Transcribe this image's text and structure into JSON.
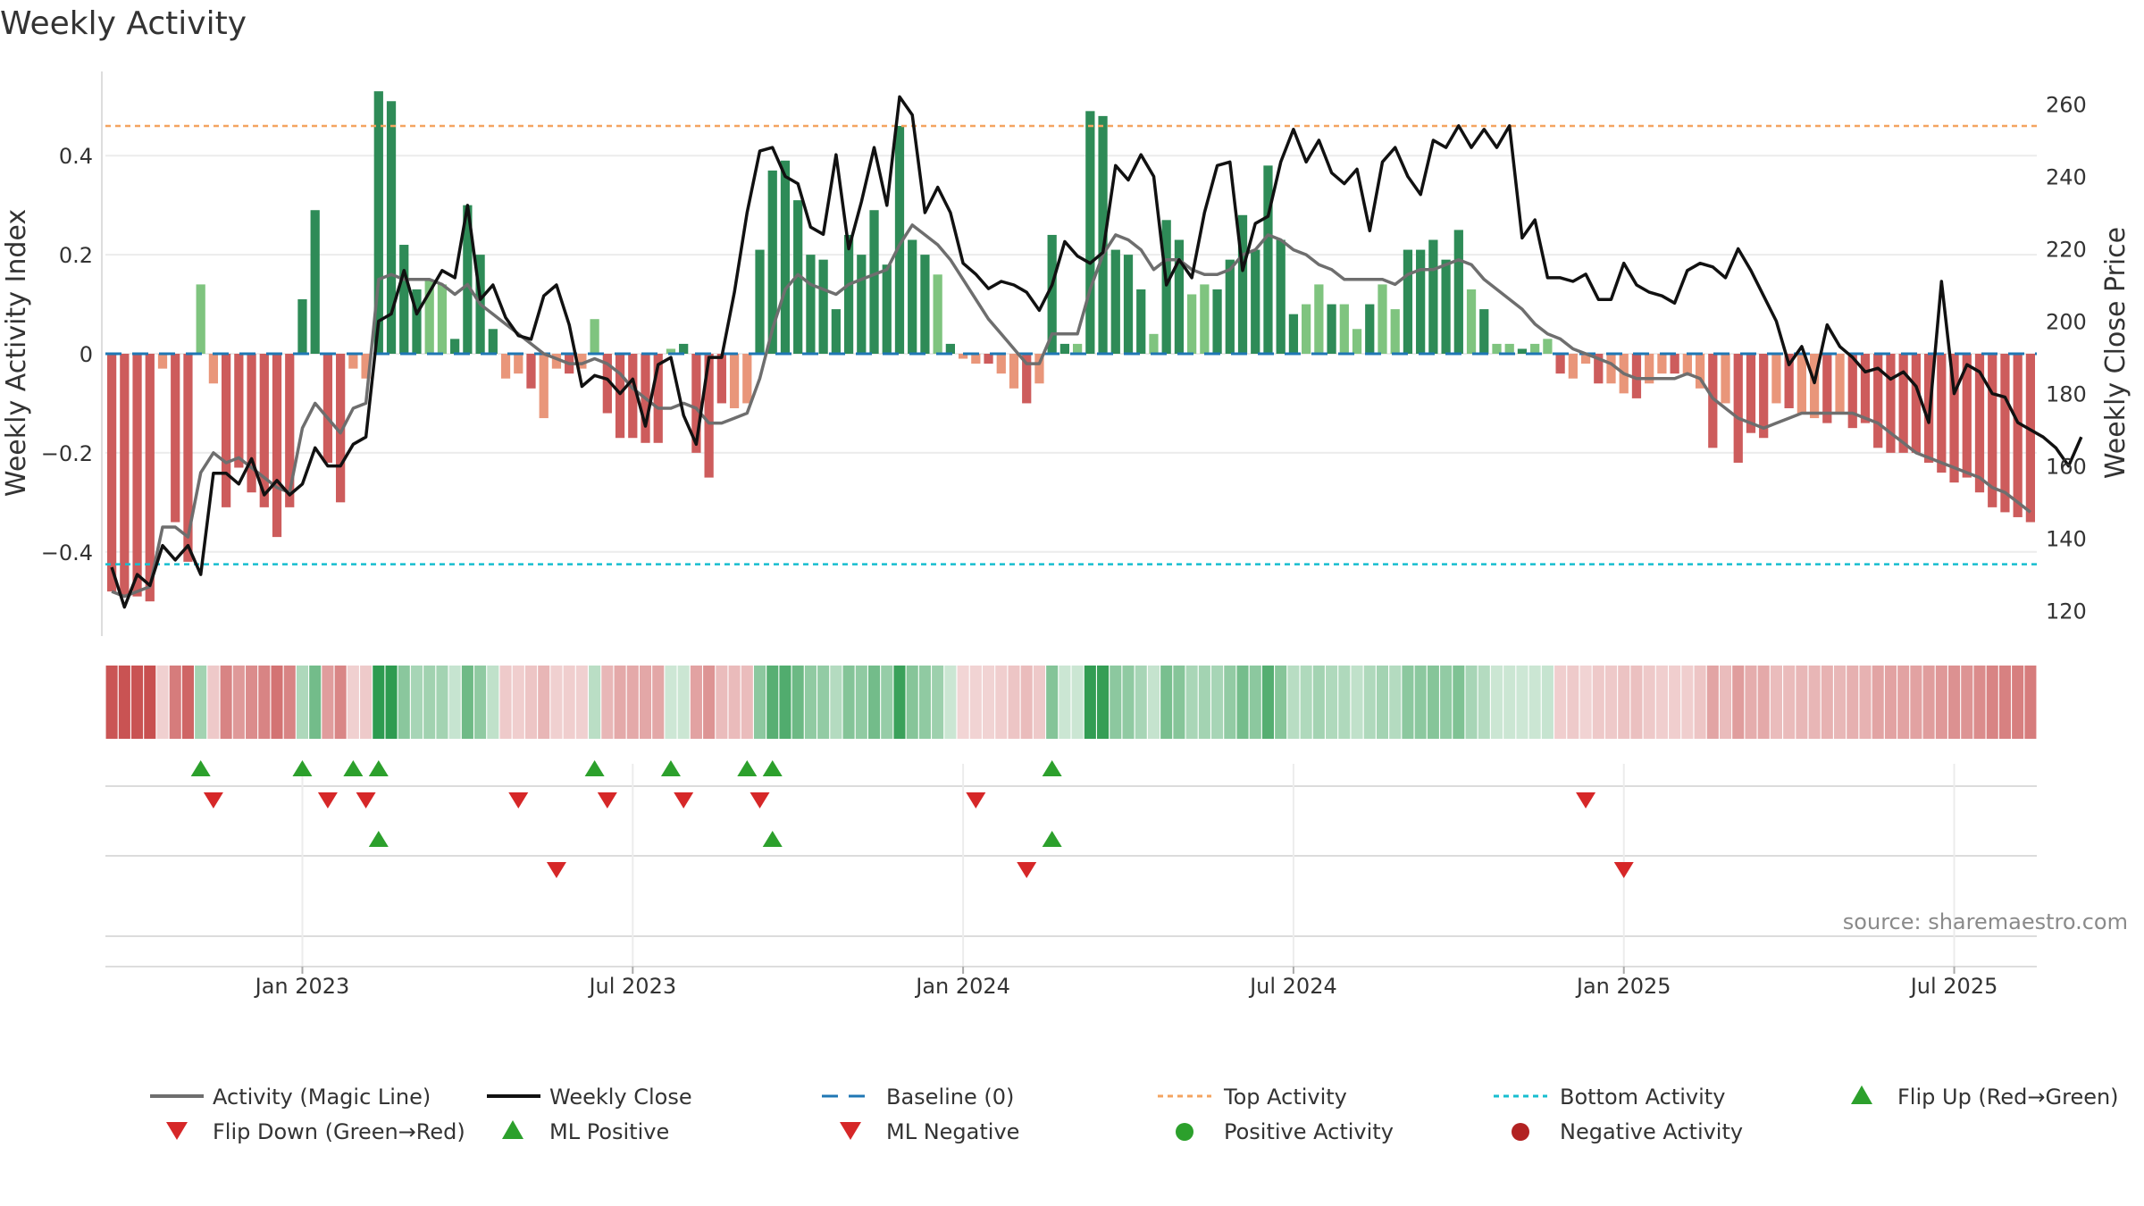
{
  "chart_data": {
    "type": "bar",
    "title": "Weekly Activity",
    "ylabel": "Weekly Activity Index",
    "y2label": "Weekly Close Price",
    "ylim": [
      -0.57,
      0.57
    ],
    "y2lim": [
      113,
      269
    ],
    "yticks": [
      {
        "v": 0.4,
        "label": "0.4"
      },
      {
        "v": 0.2,
        "label": "0.2"
      },
      {
        "v": 0,
        "label": "0"
      },
      {
        "v": -0.2,
        "label": "−0.2"
      },
      {
        "v": -0.4,
        "label": "−0.4"
      }
    ],
    "y2ticks": [
      "120",
      "140",
      "160",
      "180",
      "200",
      "220",
      "240",
      "260"
    ],
    "xtick_labels": [
      "Jan 2023",
      "Jul 2023",
      "Jan 2024",
      "Jul 2024",
      "Jan 2025",
      "Jul 2025"
    ],
    "xtick_index": [
      15,
      41,
      67,
      93,
      119,
      145
    ],
    "top_activity": 0.46,
    "bottom_activity": -0.425,
    "source": "source: sharemaestro.com",
    "activity": [
      -0.48,
      -0.49,
      -0.49,
      -0.5,
      -0.03,
      -0.34,
      -0.42,
      0.14,
      -0.06,
      -0.31,
      -0.23,
      -0.28,
      -0.31,
      -0.37,
      -0.31,
      0.11,
      0.29,
      -0.22,
      -0.3,
      -0.03,
      -0.05,
      0.53,
      0.51,
      0.22,
      0.13,
      0.15,
      0.14,
      0.03,
      0.3,
      0.2,
      0.05,
      -0.05,
      -0.04,
      -0.07,
      -0.13,
      -0.03,
      -0.04,
      -0.03,
      0.07,
      -0.12,
      -0.17,
      -0.17,
      -0.18,
      -0.18,
      0.01,
      0.02,
      -0.2,
      -0.25,
      -0.1,
      -0.11,
      -0.1,
      0.21,
      0.37,
      0.39,
      0.31,
      0.2,
      0.19,
      0.09,
      0.24,
      0.2,
      0.29,
      0.18,
      0.46,
      0.23,
      0.2,
      0.16,
      0.02,
      -0.01,
      -0.02,
      -0.02,
      -0.04,
      -0.07,
      -0.1,
      -0.06,
      0.24,
      0.02,
      0.02,
      0.49,
      0.48,
      0.21,
      0.2,
      0.13,
      0.04,
      0.27,
      0.23,
      0.12,
      0.14,
      0.13,
      0.19,
      0.28,
      0.21,
      0.38,
      0.23,
      0.08,
      0.1,
      0.14,
      0.1,
      0.1,
      0.05,
      0.1,
      0.14,
      0.09,
      0.21,
      0.21,
      0.23,
      0.19,
      0.25,
      0.13,
      0.09,
      0.02,
      0.02,
      0.01,
      0.02,
      0.03,
      -0.04,
      -0.05,
      -0.02,
      -0.06,
      -0.06,
      -0.08,
      -0.09,
      -0.06,
      -0.04,
      -0.04,
      -0.04,
      -0.07,
      -0.19,
      -0.1,
      -0.22,
      -0.16,
      -0.17,
      -0.1,
      -0.11,
      -0.12,
      -0.13,
      -0.14,
      -0.12,
      -0.15,
      -0.14,
      -0.19,
      -0.2,
      -0.2,
      -0.2,
      -0.22,
      -0.24,
      -0.26,
      -0.25,
      -0.28,
      -0.31,
      -0.32,
      -0.33,
      -0.34
    ],
    "magic_line": [
      -0.48,
      -0.49,
      -0.48,
      -0.47,
      -0.35,
      -0.35,
      -0.37,
      -0.24,
      -0.2,
      -0.22,
      -0.21,
      -0.23,
      -0.25,
      -0.27,
      -0.28,
      -0.15,
      -0.1,
      -0.13,
      -0.16,
      -0.11,
      -0.1,
      0.15,
      0.16,
      0.15,
      0.15,
      0.15,
      0.14,
      0.12,
      0.14,
      0.1,
      0.08,
      0.06,
      0.04,
      0.02,
      0.0,
      -0.01,
      -0.02,
      -0.02,
      -0.01,
      -0.02,
      -0.04,
      -0.07,
      -0.09,
      -0.11,
      -0.11,
      -0.1,
      -0.11,
      -0.14,
      -0.14,
      -0.13,
      -0.12,
      -0.05,
      0.05,
      0.13,
      0.16,
      0.14,
      0.13,
      0.12,
      0.14,
      0.15,
      0.16,
      0.17,
      0.22,
      0.26,
      0.24,
      0.22,
      0.19,
      0.15,
      0.11,
      0.07,
      0.04,
      0.01,
      -0.02,
      -0.02,
      0.04,
      0.04,
      0.04,
      0.13,
      0.2,
      0.24,
      0.23,
      0.21,
      0.17,
      0.19,
      0.19,
      0.17,
      0.16,
      0.16,
      0.17,
      0.2,
      0.21,
      0.24,
      0.23,
      0.21,
      0.2,
      0.18,
      0.17,
      0.15,
      0.15,
      0.15,
      0.15,
      0.14,
      0.16,
      0.17,
      0.17,
      0.18,
      0.19,
      0.18,
      0.15,
      0.13,
      0.11,
      0.09,
      0.06,
      0.04,
      0.03,
      0.01,
      0.0,
      -0.01,
      -0.02,
      -0.04,
      -0.05,
      -0.05,
      -0.05,
      -0.05,
      -0.04,
      -0.05,
      -0.09,
      -0.11,
      -0.13,
      -0.14,
      -0.15,
      -0.14,
      -0.13,
      -0.12,
      -0.12,
      -0.12,
      -0.12,
      -0.12,
      -0.13,
      -0.14,
      -0.16,
      -0.18,
      -0.2,
      -0.21,
      -0.22,
      -0.23,
      -0.24,
      -0.25,
      -0.27,
      -0.28,
      -0.3,
      -0.32
    ],
    "weekly_close": [
      132,
      121,
      130,
      127,
      138,
      134,
      138,
      130,
      158,
      158,
      155,
      162,
      152,
      156,
      152,
      155,
      165,
      160,
      160,
      166,
      168,
      200,
      202,
      214,
      202,
      208,
      214,
      212,
      232,
      206,
      210,
      201,
      196,
      195,
      207,
      210,
      199,
      182,
      185,
      184,
      180,
      184,
      171,
      188,
      190,
      174,
      166,
      190,
      190,
      208,
      230,
      247,
      248,
      240,
      238,
      226,
      224,
      246,
      220,
      233,
      248,
      232,
      262,
      257,
      230,
      237,
      230,
      216,
      213,
      209,
      211,
      210,
      208,
      203,
      210,
      222,
      218,
      216,
      219,
      243,
      239,
      246,
      240,
      210,
      217,
      212,
      230,
      243,
      244,
      214,
      227,
      229,
      244,
      253,
      244,
      250,
      241,
      238,
      242,
      225,
      244,
      248,
      240,
      235,
      250,
      248,
      254,
      248,
      253,
      248,
      254,
      223,
      228,
      212,
      212,
      211,
      213,
      206,
      206,
      216,
      210,
      208,
      207,
      205,
      214,
      216,
      215,
      212,
      220,
      214,
      207,
      200,
      188,
      193,
      183,
      199,
      193,
      190,
      186,
      187,
      184,
      186,
      182,
      172,
      211,
      180,
      188,
      186,
      180,
      179,
      172,
      170,
      168,
      165,
      160,
      168
    ]
  },
  "legend": {
    "magic_line": "Activity (Magic Line)",
    "weekly_close": "Weekly Close",
    "baseline": "Baseline (0)",
    "top_activity": "Top Activity",
    "bottom_activity": "Bottom Activity",
    "flip_up": "Flip Up (Red→Green)",
    "flip_down": "Flip Down (Green→Red)",
    "ml_positive": "ML Positive",
    "ml_negative": "ML Negative",
    "positive_activity": "Positive Activity",
    "negative_activity": "Negative Activity"
  },
  "markers": {
    "flip_up": [
      7,
      15,
      19,
      21,
      38,
      44,
      50,
      52,
      74
    ],
    "flip_down": [
      8,
      17,
      20,
      32,
      39,
      45,
      51,
      68,
      116
    ],
    "ml_up": [
      21,
      52,
      74
    ],
    "ml_down": [
      35,
      72,
      119
    ]
  },
  "colors": {
    "pos_dark": "#2e8b57",
    "pos_light": "#7fc47f",
    "neg_dark": "#cd5c5c",
    "neg_light": "#e9967a",
    "magic_line": "#6e6e6e",
    "close": "#111111",
    "baseline": "#1f77b4",
    "top": "#f4a460",
    "bottom": "#17becf",
    "up_marker": "#2ca02c",
    "down_marker": "#d62728"
  }
}
